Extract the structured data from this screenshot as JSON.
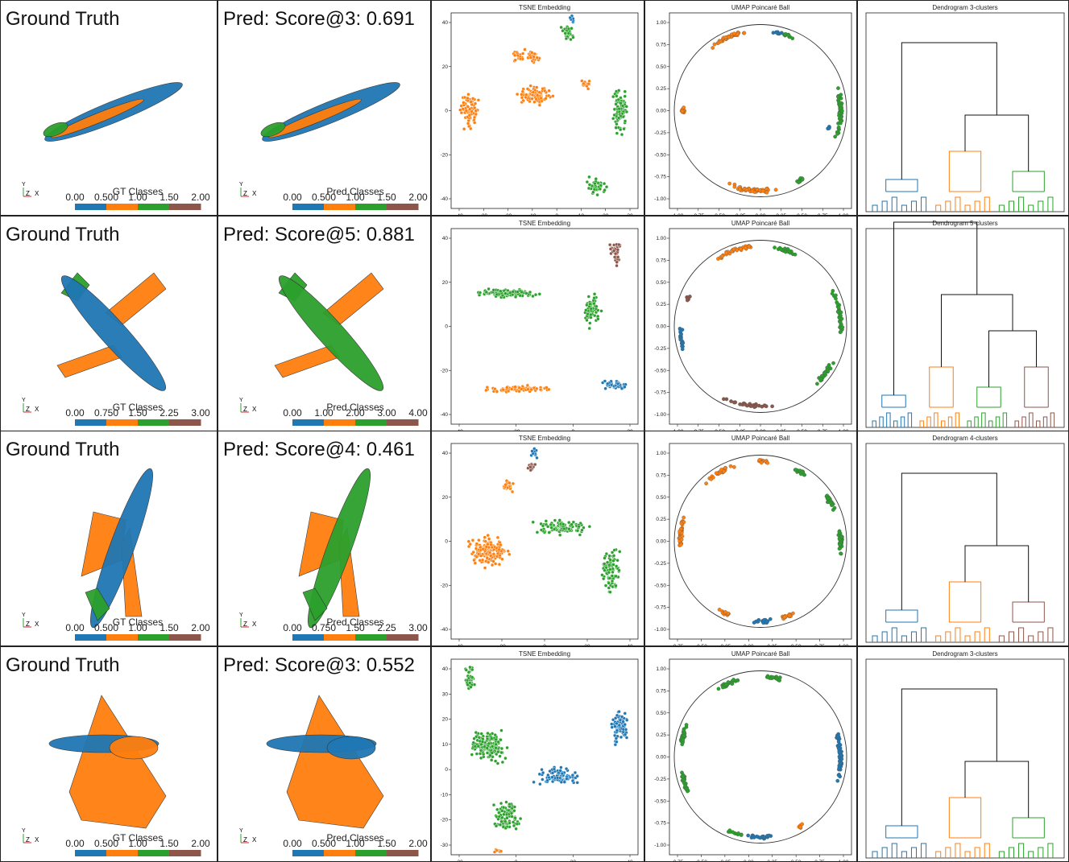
{
  "class_colors": [
    "#1f77b4",
    "#ff7f0e",
    "#2ca02c",
    "#8c564b",
    "#e377c2"
  ],
  "gizmo_labels": [
    "Y",
    "Z",
    "X"
  ],
  "rows": [
    {
      "gt": {
        "title": "Ground Truth",
        "colorbar_label": "GT Classes",
        "colorbar_ticks": [
          "0.00",
          "0.500",
          "1.00",
          "1.50",
          "2.00"
        ]
      },
      "pred": {
        "title": "Pred: Score@3: 0.691",
        "colorbar_label": "Pred Classes",
        "colorbar_ticks": [
          "0.00",
          "0.500",
          "1.00",
          "1.50",
          "2.00"
        ]
      },
      "tsne": {
        "title": "TSNE Embedding",
        "xticks": [
          "-40",
          "-30",
          "-20",
          "-10",
          "0",
          "10",
          "20",
          "30"
        ],
        "yticks": [
          "40",
          "20",
          "0",
          "-20",
          "-40"
        ]
      },
      "umap": {
        "title": "UMAP Poincaré Ball",
        "xticks": [
          "-1.00",
          "-0.75",
          "-0.50",
          "-0.25",
          "0.00",
          "0.25",
          "0.50",
          "0.75",
          "1.00"
        ],
        "yticks": [
          "1.00",
          "0.75",
          "0.50",
          "0.25",
          "0.00",
          "-0.25",
          "-0.50",
          "-0.75",
          "-1.00"
        ]
      },
      "dendrogram": {
        "title": "Dendrogram 3-clusters"
      }
    },
    {
      "gt": {
        "title": "Ground Truth",
        "colorbar_label": "GT Classes",
        "colorbar_ticks": [
          "0.00",
          "0.750",
          "1.50",
          "2.25",
          "3.00"
        ]
      },
      "pred": {
        "title": "Pred: Score@5: 0.881",
        "colorbar_label": "Pred Classes",
        "colorbar_ticks": [
          "0.00",
          "1.00",
          "2.00",
          "3.00",
          "4.00"
        ]
      },
      "tsne": {
        "title": "TSNE Embedding",
        "xticks": [
          "-40",
          "-20",
          "0",
          "20"
        ],
        "yticks": [
          "40",
          "20",
          "0",
          "-20",
          "-40"
        ]
      },
      "umap": {
        "title": "UMAP Poincaré Ball",
        "xticks": [
          "-1.00",
          "-0.75",
          "-0.50",
          "-0.25",
          "0.00",
          "0.25",
          "0.50",
          "0.75",
          "1.00"
        ],
        "yticks": [
          "1.00",
          "0.75",
          "0.50",
          "0.25",
          "0.00",
          "-0.25",
          "-0.50",
          "-0.75",
          "-1.00"
        ]
      },
      "dendrogram": {
        "title": "Dendrogram 5-clusters"
      }
    },
    {
      "gt": {
        "title": "Ground Truth",
        "colorbar_label": "GT Classes",
        "colorbar_ticks": [
          "0.00",
          "0.500",
          "1.00",
          "1.50",
          "2.00"
        ]
      },
      "pred": {
        "title": "Pred: Score@4: 0.461",
        "colorbar_label": "Pred Classes",
        "colorbar_ticks": [
          "0.00",
          "0.750",
          "1.50",
          "2.25",
          "3.00"
        ]
      },
      "tsne": {
        "title": "TSNE Embedding",
        "xticks": [
          "-40",
          "-20",
          "0",
          "20",
          "40"
        ],
        "yticks": [
          "40",
          "20",
          "0",
          "-20",
          "-40"
        ]
      },
      "umap": {
        "title": "UMAP Poincaré Ball",
        "xticks": [
          "-0.75",
          "-0.50",
          "-0.25",
          "0.00",
          "0.25",
          "0.50",
          "0.75",
          "1.00"
        ],
        "yticks": [
          "1.00",
          "0.75",
          "0.50",
          "0.25",
          "0.00",
          "-0.25",
          "-0.50",
          "-0.75",
          "-1.00"
        ]
      },
      "dendrogram": {
        "title": "Dendrogram 4-clusters"
      }
    },
    {
      "gt": {
        "title": "Ground Truth",
        "colorbar_label": "GT Classes",
        "colorbar_ticks": [
          "0.00",
          "0.500",
          "1.00",
          "1.50",
          "2.00"
        ]
      },
      "pred": {
        "title": "Pred: Score@3: 0.552",
        "colorbar_label": "Pred Classes",
        "colorbar_ticks": [
          "0.00",
          "0.500",
          "1.00",
          "1.50",
          "2.00"
        ]
      },
      "tsne": {
        "title": "TSNE Embedding",
        "xticks": [
          "-20",
          "0",
          "20",
          "40"
        ],
        "yticks": [
          "40",
          "30",
          "20",
          "10",
          "0",
          "-10",
          "-20",
          "-30"
        ]
      },
      "umap": {
        "title": "UMAP Poincaré Ball",
        "xticks": [
          "-0.75",
          "-0.50",
          "-0.25",
          "0.00",
          "0.25",
          "0.50",
          "0.75",
          "1.00"
        ],
        "yticks": [
          "1.00",
          "0.75",
          "0.50",
          "0.25",
          "0.00",
          "-0.25",
          "-0.50",
          "-0.75",
          "-1.00"
        ]
      },
      "dendrogram": {
        "title": "Dendrogram 3-clusters"
      }
    }
  ]
}
